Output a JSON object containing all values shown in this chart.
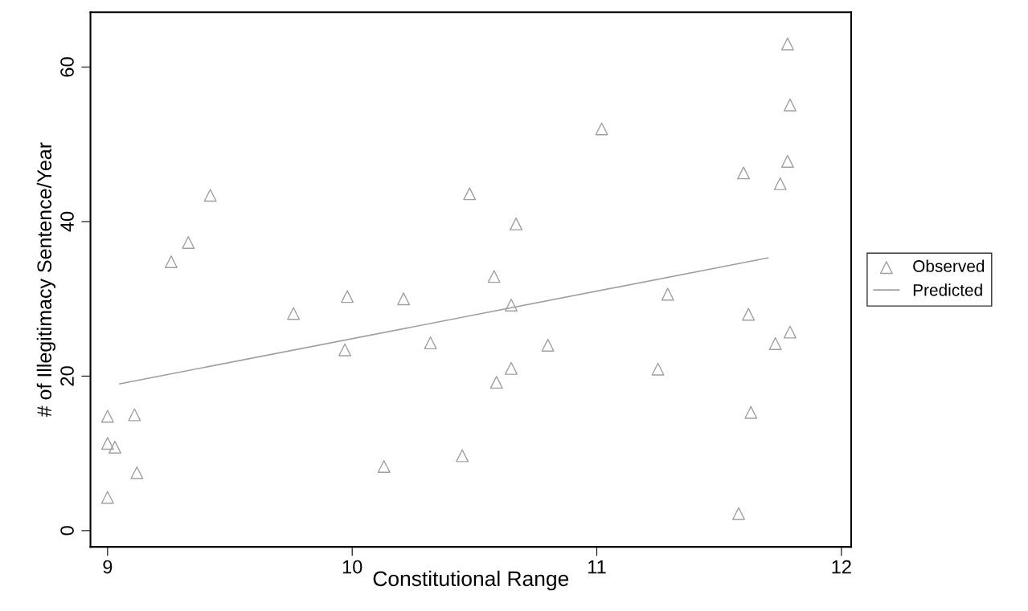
{
  "chart_data": {
    "type": "scatter",
    "xlabel": "Constitutional Range",
    "ylabel": "# of Illegitimacy Sentence/Year",
    "xlim": [
      8.93,
      12.04
    ],
    "ylim": [
      -2.1,
      67.1
    ],
    "xticks": [
      9,
      10,
      11,
      12
    ],
    "yticks": [
      0,
      20,
      40,
      60
    ],
    "grid": false,
    "legend": "right",
    "series": [
      {
        "name": "Observed",
        "marker": "triangle",
        "color": "#a0a0a0",
        "x": [
          9.0,
          9.0,
          9.03,
          9.0,
          9.11,
          9.12,
          9.26,
          9.33,
          9.42,
          9.76,
          9.98,
          9.97,
          10.13,
          10.21,
          10.32,
          10.45,
          10.48,
          10.58,
          10.59,
          10.65,
          10.65,
          10.67,
          10.8,
          11.02,
          11.25,
          11.29,
          11.58,
          11.6,
          11.62,
          11.63,
          11.73,
          11.75,
          11.78,
          11.78,
          11.79,
          11.79
        ],
        "values": [
          14.8,
          11.3,
          10.8,
          4.3,
          15.0,
          7.5,
          34.8,
          37.3,
          43.4,
          28.1,
          30.3,
          23.4,
          8.3,
          30.0,
          24.3,
          9.7,
          43.6,
          32.9,
          19.2,
          21.0,
          29.2,
          39.7,
          24.0,
          52.0,
          20.9,
          30.6,
          2.2,
          46.3,
          28.0,
          15.3,
          24.2,
          44.9,
          63.0,
          47.8,
          55.1,
          25.7
        ]
      },
      {
        "name": "Predicted",
        "type": "line",
        "color": "#a0a0a0",
        "x": [
          9.05,
          11.7
        ],
        "values": [
          19.0,
          35.3
        ]
      }
    ]
  }
}
